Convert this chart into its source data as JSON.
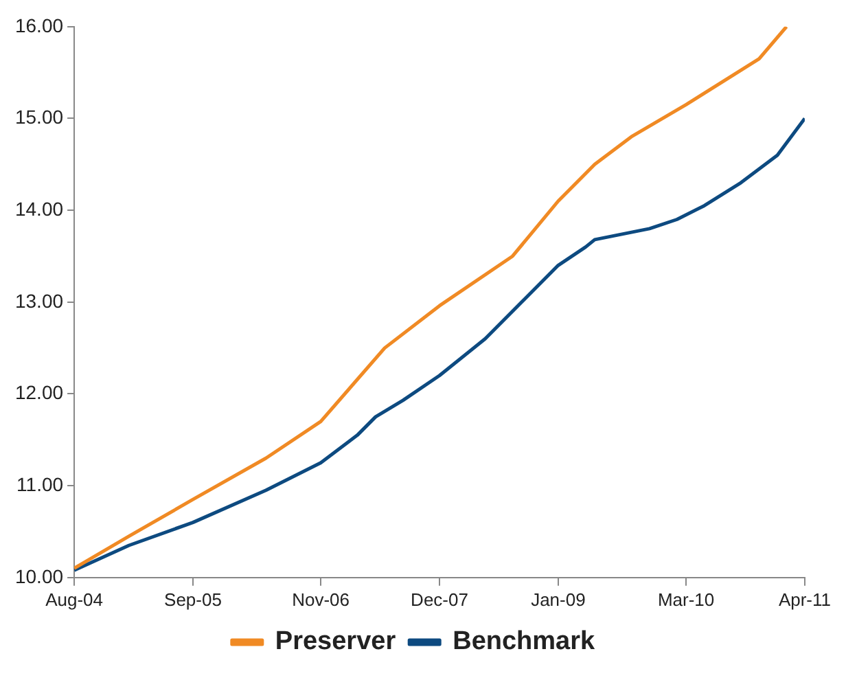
{
  "chart_data": {
    "type": "line",
    "xlim": [
      "2004-08",
      "2011-04"
    ],
    "ylim": [
      10,
      16
    ],
    "xticks": [
      {
        "value": "2004-08",
        "label": "Aug-04"
      },
      {
        "value": "2005-09",
        "label": "Sep-05"
      },
      {
        "value": "2006-11",
        "label": "Nov-06"
      },
      {
        "value": "2007-12",
        "label": "Dec-07"
      },
      {
        "value": "2009-01",
        "label": "Jan-09"
      },
      {
        "value": "2010-03",
        "label": "Mar-10"
      },
      {
        "value": "2011-04",
        "label": "Apr-11"
      }
    ],
    "yticks": [
      {
        "value": 10,
        "label": "10.00"
      },
      {
        "value": 11,
        "label": "11.00"
      },
      {
        "value": 12,
        "label": "12.00"
      },
      {
        "value": 13,
        "label": "13.00"
      },
      {
        "value": 14,
        "label": "14.00"
      },
      {
        "value": 15,
        "label": "15.00"
      },
      {
        "value": 16,
        "label": "16.00"
      }
    ],
    "grid": false,
    "legend": "bottom",
    "marker": "none",
    "line_style": "solid",
    "series": [
      {
        "name": "Preserver",
        "color": "#f08a24",
        "x": [
          "2004-08",
          "2005-02",
          "2005-09",
          "2006-05",
          "2006-11",
          "2007-06",
          "2007-12",
          "2008-08",
          "2009-01",
          "2009-05",
          "2009-09",
          "2010-03",
          "2010-11",
          "2011-02"
        ],
        "values": [
          10.1,
          10.45,
          10.85,
          11.3,
          11.7,
          12.5,
          12.96,
          13.5,
          14.1,
          14.5,
          14.8,
          15.15,
          15.65,
          16.0
        ]
      },
      {
        "name": "Benchmark",
        "color": "#0d4a80",
        "x": [
          "2004-08",
          "2005-02",
          "2005-09",
          "2006-05",
          "2006-11",
          "2007-03",
          "2007-05",
          "2007-08",
          "2007-12",
          "2008-05",
          "2008-09",
          "2009-01",
          "2009-04",
          "2009-05",
          "2009-11",
          "2010-02",
          "2010-05",
          "2010-09",
          "2011-01",
          "2011-04"
        ],
        "values": [
          10.08,
          10.35,
          10.6,
          10.95,
          11.25,
          11.55,
          11.75,
          11.93,
          12.2,
          12.6,
          13.0,
          13.4,
          13.6,
          13.68,
          13.8,
          13.9,
          14.05,
          14.3,
          14.6,
          15.0
        ]
      }
    ]
  }
}
